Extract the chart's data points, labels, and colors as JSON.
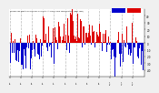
{
  "bar_color_high": "#dd0000",
  "bar_color_low": "#0000cc",
  "background_color": "#f0f0f0",
  "plot_bg_color": "#ffffff",
  "n_points": 365,
  "ylim_low": -50,
  "ylim_high": 50,
  "grid_color": "#bbbbbb",
  "seed": 12345,
  "seasonal_amplitude": 20,
  "noise_amplitude": 18,
  "title_text": "Milwaukee Weather Outdoor Humidity At Daily High Temperature (Past Year)",
  "month_starts": [
    0,
    31,
    59,
    90,
    120,
    151,
    181,
    212,
    243,
    273,
    304,
    334
  ],
  "month_labels": [
    "1/1",
    "2/1",
    "3/1",
    "4/1",
    "5/1",
    "6/1",
    "7/1",
    "8/1",
    "9/1",
    "10/1",
    "11/1",
    "12/1"
  ],
  "ytick_vals": [
    40,
    30,
    20,
    10,
    0,
    -10,
    -20,
    -30,
    -40
  ],
  "ytick_labels": [
    "40",
    "30",
    "20",
    "10",
    "0",
    "-10",
    "-20",
    "-30",
    "-40"
  ]
}
